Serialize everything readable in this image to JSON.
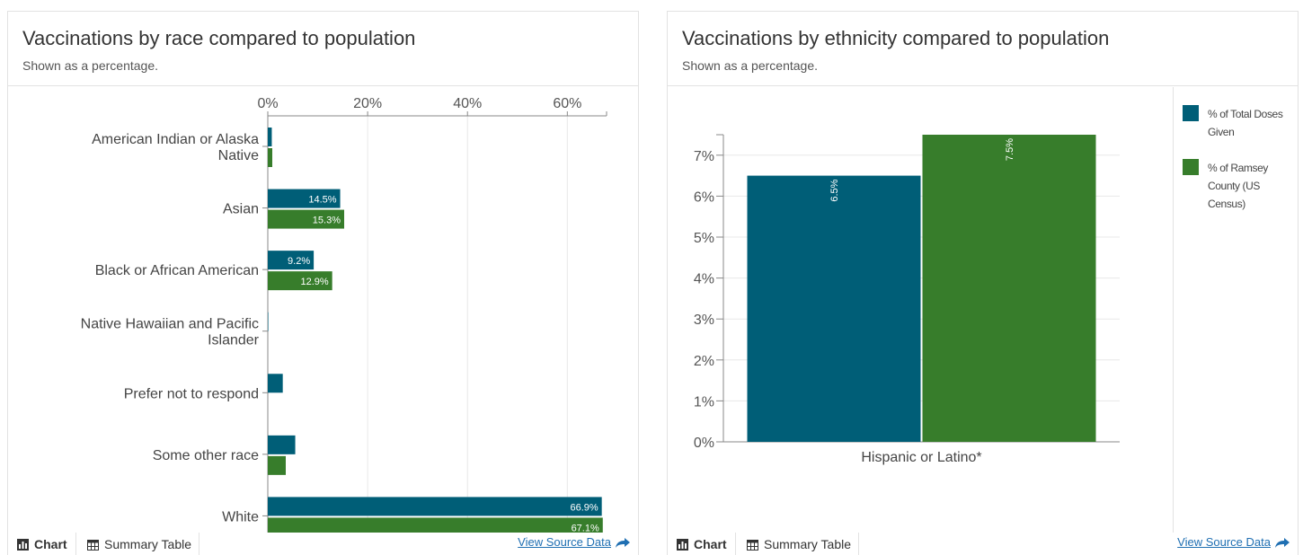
{
  "colors": {
    "doses": "#005e77",
    "census": "#377d2b",
    "axis": "#888888",
    "grid": "#e8e8e8",
    "link": "#1f6fb2"
  },
  "left_panel": {
    "title": "Vaccinations by race compared to population",
    "subtitle": "Shown as a percentage.",
    "tabs": {
      "chart": "Chart",
      "table": "Summary Table"
    },
    "source_link": "View Source Data"
  },
  "right_panel": {
    "title": "Vaccinations by ethnicity compared to population",
    "subtitle": "Shown as a percentage.",
    "tabs": {
      "chart": "Chart",
      "table": "Summary Table"
    },
    "source_link": "View Source Data",
    "legend": [
      {
        "label": "% of Total Doses Given",
        "color": "#005e77"
      },
      {
        "label": "% of Ramsey County (US Census)",
        "color": "#377d2b"
      }
    ]
  },
  "chart_data": [
    {
      "type": "bar",
      "orientation": "horizontal",
      "title": "Vaccinations by race compared to population",
      "subtitle": "Shown as a percentage.",
      "categories": [
        [
          "American Indian or Alaska",
          "Native"
        ],
        [
          "Asian"
        ],
        [
          "Black or African American"
        ],
        [
          "Native Hawaiian and Pacific",
          "Islander"
        ],
        [
          "Prefer not to respond"
        ],
        [
          "Some other race"
        ],
        [
          "White"
        ]
      ],
      "series": [
        {
          "name": "% of Total Doses Given",
          "color": "#005e77",
          "values": [
            0.8,
            14.5,
            9.2,
            0.1,
            3.0,
            5.5,
            66.9
          ],
          "labels": [
            "",
            "14.5%",
            "9.2%",
            "",
            "",
            "",
            "66.9%"
          ]
        },
        {
          "name": "% of Ramsey County (US Census)",
          "color": "#377d2b",
          "values": [
            0.9,
            15.3,
            12.9,
            0.0,
            0.0,
            3.6,
            67.1
          ],
          "labels": [
            "",
            "15.3%",
            "12.9%",
            "",
            "",
            "",
            "67.1%"
          ]
        }
      ],
      "ticks": [
        0,
        20,
        40,
        60
      ],
      "tick_labels": [
        "0%",
        "20%",
        "40%",
        "60%"
      ],
      "xlim": [
        0,
        67.5
      ],
      "grid": true
    },
    {
      "type": "bar",
      "orientation": "vertical",
      "title": "Vaccinations by ethnicity compared to population",
      "subtitle": "Shown as a percentage.",
      "categories": [
        "Hispanic or Latino*"
      ],
      "series": [
        {
          "name": "% of Total Doses Given",
          "color": "#005e77",
          "values": [
            6.5
          ],
          "labels": [
            "6.5%"
          ]
        },
        {
          "name": "% of Ramsey County (US Census)",
          "color": "#377d2b",
          "values": [
            7.5
          ],
          "labels": [
            "7.5%"
          ]
        }
      ],
      "ticks": [
        0,
        1,
        2,
        3,
        4,
        5,
        6,
        7
      ],
      "tick_labels": [
        "0%",
        "1%",
        "2%",
        "3%",
        "4%",
        "5%",
        "6%",
        "7%"
      ],
      "ylim": [
        0,
        7.5
      ],
      "grid": true,
      "legend_position": "right"
    }
  ]
}
